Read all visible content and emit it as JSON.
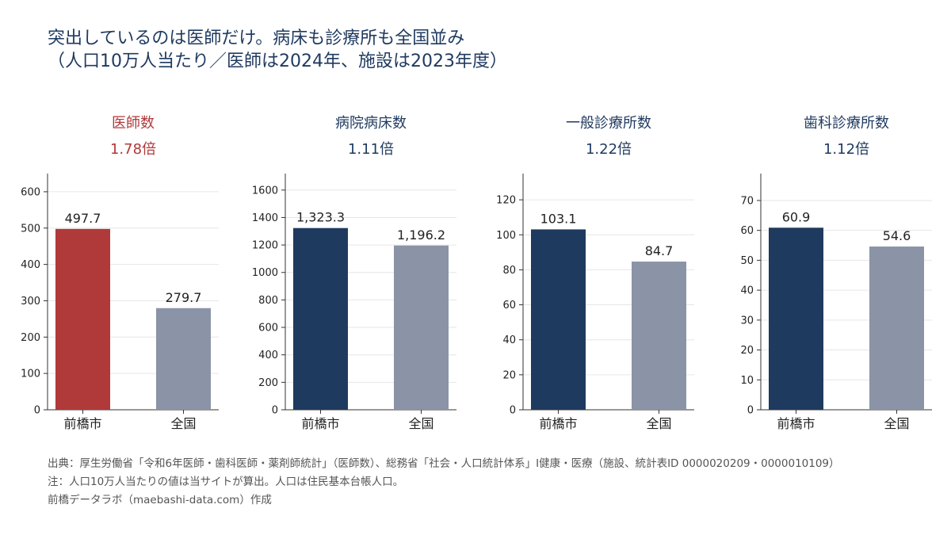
{
  "title": {
    "line1": "突出しているのは医師だけ。病床も診療所も全国並み",
    "line2": "（人口10万人当たり／医師は2024年、施設は2023年度）"
  },
  "colors": {
    "title": "#1f3a5f",
    "highlight": "#b0393a",
    "maebashi": "#1f3a5f",
    "national": "#8a94a6",
    "axis": "#333333",
    "grid": "#e6e6e6",
    "footer": "#555555"
  },
  "chart_data": [
    {
      "type": "bar",
      "title": "医師数",
      "ratio": "1.78倍",
      "highlight": true,
      "categories": [
        "前橋市",
        "全国"
      ],
      "values": [
        497.7,
        279.7
      ],
      "labels": [
        "497.7",
        "279.7"
      ],
      "ylim": [
        0,
        650
      ],
      "yticks": [
        0,
        100,
        200,
        300,
        400,
        500,
        600
      ],
      "grid": true
    },
    {
      "type": "bar",
      "title": "病院病床数",
      "ratio": "1.11倍",
      "highlight": false,
      "categories": [
        "前橋市",
        "全国"
      ],
      "values": [
        1323.3,
        1196.2
      ],
      "labels": [
        "1,323.3",
        "1,196.2"
      ],
      "ylim": [
        0,
        1720
      ],
      "yticks": [
        0,
        200,
        400,
        600,
        800,
        1000,
        1200,
        1400,
        1600
      ],
      "grid": true
    },
    {
      "type": "bar",
      "title": "一般診療所数",
      "ratio": "1.22倍",
      "highlight": false,
      "categories": [
        "前橋市",
        "全国"
      ],
      "values": [
        103.1,
        84.7
      ],
      "labels": [
        "103.1",
        "84.7"
      ],
      "ylim": [
        0,
        135
      ],
      "yticks": [
        0,
        20,
        40,
        60,
        80,
        100,
        120
      ],
      "grid": true
    },
    {
      "type": "bar",
      "title": "歯科診療所数",
      "ratio": "1.12倍",
      "highlight": false,
      "categories": [
        "前橋市",
        "全国"
      ],
      "values": [
        60.9,
        54.6
      ],
      "labels": [
        "60.9",
        "54.6"
      ],
      "ylim": [
        0,
        79
      ],
      "yticks": [
        0,
        10,
        20,
        30,
        40,
        50,
        60,
        70
      ],
      "grid": true
    }
  ],
  "footer": {
    "source": "出典：厚生労働省「令和6年医師・歯科医師・薬剤師統計」（医師数）、総務省「社会・人口統計体系」I健康・医療（施設、統計表ID 0000020209・0000010109）",
    "note": "注：人口10万人当たりの値は当サイトが算出。人口は住民基本台帳人口。",
    "credit": "前橋データラボ（maebashi-data.com）作成"
  }
}
